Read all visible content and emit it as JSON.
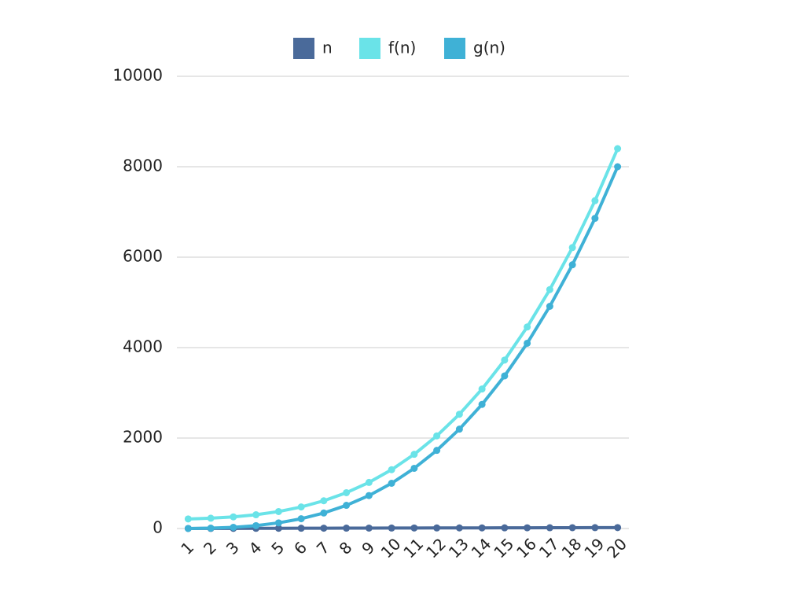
{
  "chart_data": {
    "type": "line",
    "categories": [
      "1",
      "2",
      "3",
      "4",
      "5",
      "6",
      "7",
      "8",
      "9",
      "10",
      "11",
      "12",
      "13",
      "14",
      "15",
      "16",
      "17",
      "18",
      "19",
      "20"
    ],
    "series": [
      {
        "name": "n",
        "color": "#4a6a9a",
        "values": [
          1,
          2,
          3,
          4,
          5,
          6,
          7,
          8,
          9,
          10,
          11,
          12,
          13,
          14,
          15,
          16,
          17,
          18,
          19,
          20
        ]
      },
      {
        "name": "f(n)",
        "color": "#6ae3e8",
        "values": [
          211,
          228,
          257,
          304,
          375,
          476,
          613,
          792,
          1019,
          1300,
          1641,
          2048,
          2527,
          3084,
          3725,
          4456,
          5283,
          6212,
          7249,
          8400
        ]
      },
      {
        "name": "g(n)",
        "color": "#3fb1d6",
        "values": [
          1,
          8,
          27,
          64,
          125,
          216,
          343,
          512,
          729,
          1000,
          1331,
          1728,
          2197,
          2744,
          3375,
          4096,
          4913,
          5832,
          6859,
          8000
        ]
      }
    ],
    "ylim": [
      0,
      10000
    ],
    "yticks": [
      0,
      2000,
      4000,
      6000,
      8000,
      10000
    ],
    "grid": true,
    "legend": "top"
  }
}
